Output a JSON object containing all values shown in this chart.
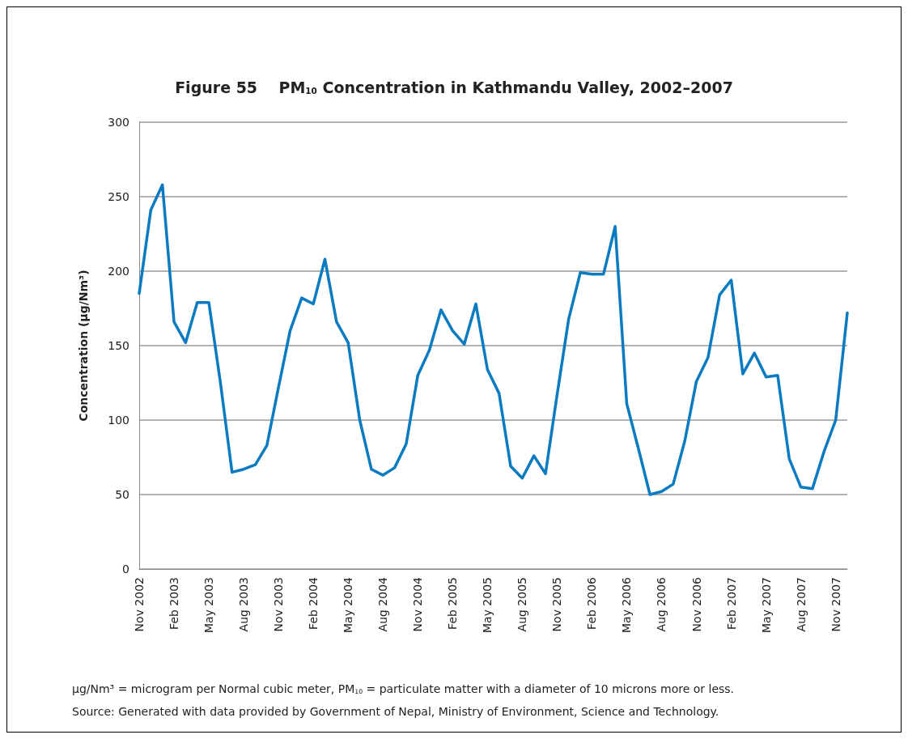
{
  "chart_data": {
    "type": "line",
    "title": "Figure 55    PM$_{10}$ Concentration in Kathmandu Valley, 2002–2007",
    "ylabel": "Concentration (μg/Nm³)",
    "categories": [
      "Nov 2002",
      null,
      null,
      "Feb 2003",
      null,
      null,
      "May 2003",
      null,
      null,
      "Aug 2003",
      null,
      null,
      "Nov 2003",
      null,
      null,
      "Feb 2004",
      null,
      null,
      "May 2004",
      null,
      null,
      "Aug 2004",
      null,
      null,
      "Nov 2004",
      null,
      null,
      "Feb 2005",
      null,
      null,
      "May 2005",
      null,
      null,
      "Aug 2005",
      null,
      null,
      "Nov 2005",
      null,
      null,
      "Feb 2006",
      null,
      null,
      "May 2006",
      null,
      null,
      "Aug 2006",
      null,
      null,
      "Nov 2006",
      null,
      null,
      "Feb 2007",
      null,
      null,
      "May 2007",
      null,
      null,
      "Aug 2007",
      null,
      null,
      "Nov 2007",
      null
    ],
    "series": [
      {
        "color": "#0b7bc1",
        "values": [
          185,
          241,
          258,
          166,
          152,
          179,
          179,
          125,
          65,
          67,
          70,
          83,
          122,
          160,
          182,
          178,
          208,
          166,
          152,
          100,
          67,
          63,
          68,
          84,
          130,
          147,
          174,
          160,
          151,
          178,
          134,
          118,
          69,
          61,
          76,
          64,
          117,
          168,
          199,
          198,
          198,
          230,
          111,
          81,
          50,
          52,
          57,
          86,
          126,
          142,
          184,
          194,
          131,
          145,
          129,
          130,
          74,
          55,
          54,
          79,
          100,
          172
        ]
      }
    ],
    "ylim": [
      0,
      300
    ],
    "yticks": [
      0,
      50,
      100,
      150,
      200,
      250,
      300
    ],
    "grid": "y",
    "marker": "none",
    "line_style": "solid",
    "annotations": [
      "μg/Nm³ = microgram per Normal cubic meter, PM$_{10}$ = particulate matter with a diameter of 10 microns more or less.",
      "Source: Generated with data provided by Government of Nepal, Ministry of Environment, Science and Technology."
    ]
  }
}
